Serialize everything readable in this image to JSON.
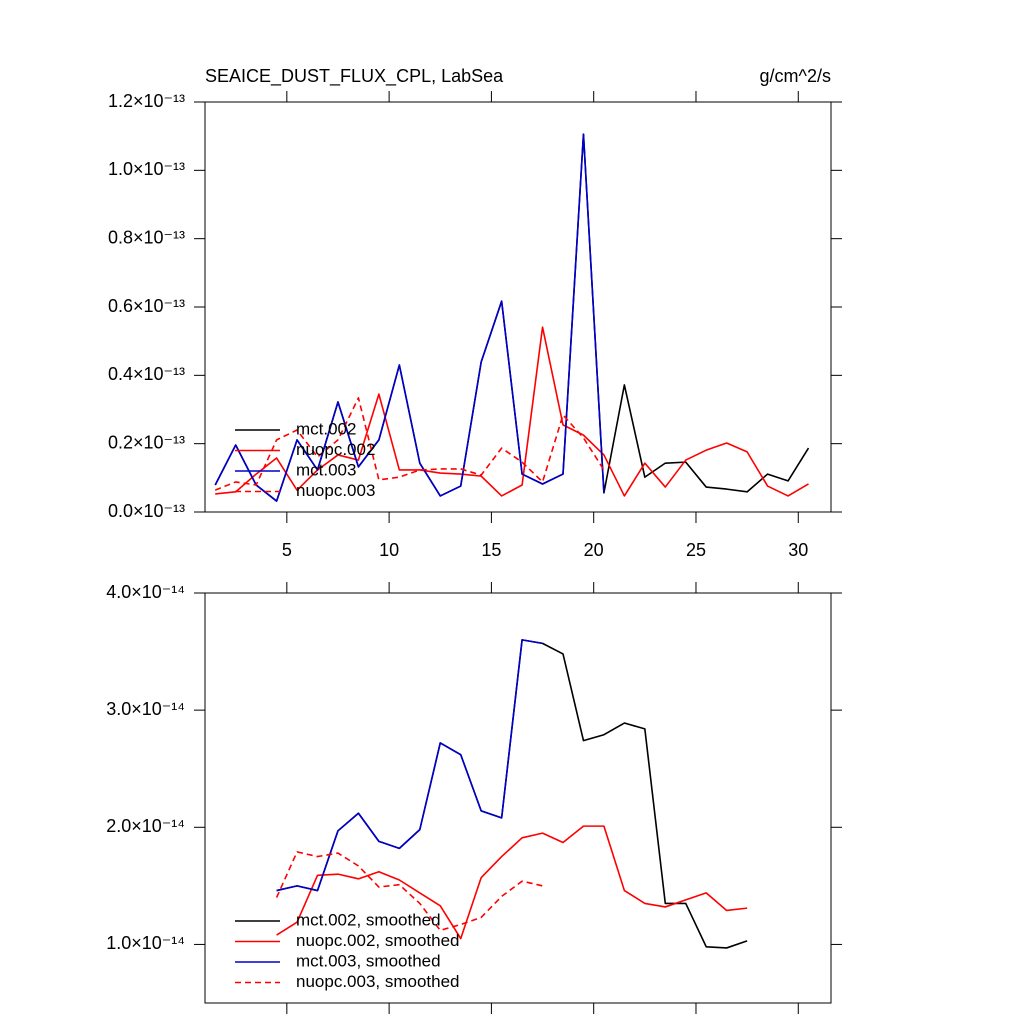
{
  "chart_data": [
    {
      "type": "line",
      "title": "SEAICE_DUST_FLUX_CPL, LabSea",
      "units": "g/cm^2/s",
      "x": [
        1.5,
        2.5,
        3.5,
        4.5,
        5.5,
        6.5,
        7.5,
        8.5,
        9.5,
        10.5,
        11.5,
        12.5,
        13.5,
        14.5,
        15.5,
        16.5,
        17.5,
        18.5,
        19.5,
        20.5,
        21.5,
        22.5,
        23.5,
        24.5,
        25.5,
        26.5,
        27.5,
        28.5,
        29.5,
        30.5
      ],
      "xlim": [
        1,
        31.6
      ],
      "xticks": [
        5,
        10,
        15,
        20,
        25,
        30
      ],
      "ylim": [
        0,
        1.2e-13
      ],
      "yticks": [
        {
          "value": 0,
          "label": "0.0×10⁻¹³"
        },
        {
          "value": 2e-14,
          "label": "0.2×10⁻¹³"
        },
        {
          "value": 4e-14,
          "label": "0.4×10⁻¹³"
        },
        {
          "value": 6e-14,
          "label": "0.6×10⁻¹³"
        },
        {
          "value": 8e-14,
          "label": "0.8×10⁻¹³"
        },
        {
          "value": 1e-13,
          "label": "1.0×10⁻¹³"
        },
        {
          "value": 1.2e-13,
          "label": "1.2×10⁻¹³"
        }
      ],
      "legend": "lower left",
      "series": [
        {
          "name": "mct.002",
          "color": "#000000",
          "line_style": "solid",
          "values": [
            7.9e-15,
            1.96e-14,
            7.9e-15,
            3.2e-15,
            2.11e-14,
            1.23e-14,
            3.22e-14,
            1.32e-14,
            2.11e-14,
            4.3e-14,
            1.43e-14,
            4.7e-15,
            7.6e-15,
            4.39e-14,
            6.17e-14,
            1.11e-14,
            8.2e-15,
            1.11e-14,
            1.106e-13,
            5.6e-15,
            3.72e-14,
            1.02e-14,
            1.43e-14,
            1.46e-14,
            7.3e-15,
            6.7e-15,
            5.9e-15,
            1.11e-14,
            9.1e-15,
            1.87e-14
          ]
        },
        {
          "name": "nuopc.002",
          "color": "#ff0000",
          "line_style": "solid",
          "values": [
            5.3e-15,
            5.9e-15,
            1.11e-14,
            1.58e-14,
            6.4e-15,
            1.23e-14,
            1.67e-14,
            1.52e-14,
            3.45e-14,
            1.23e-14,
            1.23e-14,
            1.14e-14,
            1.11e-14,
            1.05e-14,
            4.7e-15,
            7.9e-15,
            5.41e-14,
            2.55e-14,
            2.25e-14,
            1.67e-14,
            4.7e-15,
            1.43e-14,
            7.3e-15,
            1.52e-14,
            1.81e-14,
            2.02e-14,
            1.76e-14,
            7.6e-15,
            4.7e-15,
            8.2e-15
          ]
        },
        {
          "name": "mct.003",
          "color": "#0000cc",
          "line_style": "solid",
          "values": [
            7.9e-15,
            1.96e-14,
            7.9e-15,
            3.2e-15,
            2.11e-14,
            1.23e-14,
            3.22e-14,
            1.32e-14,
            2.11e-14,
            4.3e-14,
            1.43e-14,
            4.7e-15,
            7.6e-15,
            4.39e-14,
            6.17e-14,
            1.11e-14,
            8.2e-15,
            1.11e-14,
            1.106e-13,
            5.6e-15,
            null,
            null,
            null,
            null,
            null,
            null,
            null,
            null,
            null,
            null
          ]
        },
        {
          "name": "nuopc.003",
          "color": "#ff0000",
          "line_style": "dashed",
          "values": [
            6.4e-15,
            8.8e-15,
            7.9e-15,
            2.11e-14,
            2.4e-14,
            1.61e-14,
            2.11e-14,
            3.34e-14,
            9.4e-15,
            1.02e-14,
            1.23e-14,
            1.26e-14,
            1.26e-14,
            1.08e-14,
            1.87e-14,
            1.46e-14,
            8.8e-15,
            2.84e-14,
            2.17e-14,
            1.23e-14,
            null,
            null,
            null,
            null,
            null,
            null,
            null,
            null,
            null,
            null
          ]
        }
      ]
    },
    {
      "type": "line",
      "x": [
        1.5,
        2.5,
        3.5,
        4.5,
        5.5,
        6.5,
        7.5,
        8.5,
        9.5,
        10.5,
        11.5,
        12.5,
        13.5,
        14.5,
        15.5,
        16.5,
        17.5,
        18.5,
        19.5,
        20.5,
        21.5,
        22.5,
        23.5,
        24.5,
        25.5,
        26.5,
        27.5,
        28.5,
        29.5,
        30.5
      ],
      "xlim": [
        1,
        31.6
      ],
      "xticks": [
        5,
        10,
        15,
        20,
        25,
        30
      ],
      "xtick_labels": false,
      "ylim": [
        5e-15,
        4e-14
      ],
      "yticks": [
        {
          "value": 1e-14,
          "label": "1.0×10⁻¹⁴"
        },
        {
          "value": 2e-14,
          "label": "2.0×10⁻¹⁴"
        },
        {
          "value": 3e-14,
          "label": "3.0×10⁻¹⁴"
        },
        {
          "value": 4e-14,
          "label": "4.0×10⁻¹⁴"
        }
      ],
      "legend": "lower left",
      "series": [
        {
          "name": "mct.002, smoothed",
          "color": "#000000",
          "line_style": "solid",
          "values": [
            null,
            null,
            null,
            1.46e-14,
            1.5e-14,
            1.46e-14,
            1.97e-14,
            2.12e-14,
            1.88e-14,
            1.82e-14,
            1.98e-14,
            2.72e-14,
            2.62e-14,
            2.14e-14,
            2.08e-14,
            3.6e-14,
            3.57e-14,
            3.48e-14,
            2.74e-14,
            2.79e-14,
            2.89e-14,
            2.84e-14,
            1.35e-14,
            1.35e-14,
            9.8e-15,
            9.7e-15,
            1.03e-14,
            null,
            null,
            null
          ]
        },
        {
          "name": "nuopc.002, smoothed",
          "color": "#ff0000",
          "line_style": "solid",
          "values": [
            null,
            null,
            null,
            1.08e-14,
            1.19e-14,
            1.59e-14,
            1.6e-14,
            1.56e-14,
            1.62e-14,
            1.55e-14,
            1.44e-14,
            1.33e-14,
            1.05e-14,
            1.57e-14,
            1.75e-14,
            1.91e-14,
            1.95e-14,
            1.87e-14,
            2.01e-14,
            2.01e-14,
            1.46e-14,
            1.35e-14,
            1.32e-14,
            1.38e-14,
            1.44e-14,
            1.29e-14,
            1.31e-14,
            null,
            null,
            null
          ]
        },
        {
          "name": "mct.003, smoothed",
          "color": "#0000cc",
          "line_style": "solid",
          "values": [
            null,
            null,
            null,
            1.46e-14,
            1.5e-14,
            1.46e-14,
            1.97e-14,
            2.12e-14,
            1.88e-14,
            1.82e-14,
            1.98e-14,
            2.72e-14,
            2.62e-14,
            2.14e-14,
            2.08e-14,
            3.6e-14,
            3.57e-14,
            null,
            null,
            null,
            null,
            null,
            null,
            null,
            null,
            null,
            null,
            null,
            null,
            null
          ]
        },
        {
          "name": "nuopc.003, smoothed",
          "color": "#ff0000",
          "line_style": "dashed",
          "values": [
            null,
            null,
            null,
            1.4e-14,
            1.79e-14,
            1.75e-14,
            1.78e-14,
            1.67e-14,
            1.49e-14,
            1.51e-14,
            1.35e-14,
            1.12e-14,
            1.17e-14,
            1.23e-14,
            1.41e-14,
            1.54e-14,
            1.5e-14,
            null,
            null,
            null,
            null,
            null,
            null,
            null,
            null,
            null,
            null,
            null,
            null,
            null
          ]
        }
      ]
    }
  ]
}
